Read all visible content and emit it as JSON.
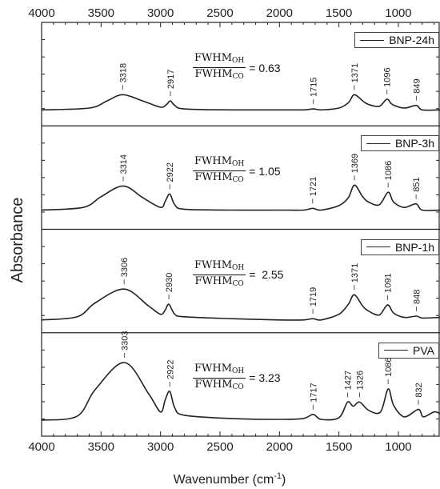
{
  "chart_data": {
    "type": "line",
    "title": "",
    "xlabel": "Wavenumber (cm",
    "xlabel_sup": "-1",
    "xlabel_tail": ")",
    "ylabel": "Absorbance",
    "xlim": [
      4000,
      650
    ],
    "x_reversed": true,
    "x_ticks": [
      4000,
      3500,
      3000,
      2500,
      2000,
      1500,
      1000
    ],
    "x_tick_labels": [
      "4000",
      "3500",
      "3000",
      "2500",
      "2000",
      "1500",
      "1000"
    ],
    "top_x_tick_labels": [
      "4000",
      "3500",
      "3000",
      "2500",
      "2000",
      "1500",
      "1000"
    ],
    "legend_placement": "top-right of each panel",
    "line_color": "#222222",
    "panels": [
      {
        "series_name": "BNP-24h",
        "ratio_numerator": "FWHM",
        "ratio_numerator_sub": "OH",
        "ratio_denominator": "FWHM",
        "ratio_denominator_sub": "CO",
        "ratio_text": "= 0.63",
        "peak_labels": [
          {
            "x": 3318,
            "label": "3318"
          },
          {
            "x": 2917,
            "label": "2917"
          },
          {
            "x": 1715,
            "label": "1715"
          },
          {
            "x": 1371,
            "label": "1371"
          },
          {
            "x": 1096,
            "label": "1096"
          },
          {
            "x": 849,
            "label": "849"
          }
        ],
        "x": [
          4000,
          3600,
          3450,
          3318,
          3150,
          3000,
          2950,
          2917,
          2880,
          2800,
          2400,
          2000,
          1800,
          1715,
          1650,
          1500,
          1420,
          1371,
          1300,
          1250,
          1160,
          1096,
          1050,
          950,
          849,
          800,
          650
        ],
        "values": [
          0.0,
          0.02,
          0.1,
          0.17,
          0.1,
          0.03,
          0.06,
          0.1,
          0.05,
          0.01,
          0.0,
          0.0,
          0.0,
          0.01,
          0.0,
          0.02,
          0.08,
          0.17,
          0.1,
          0.06,
          0.04,
          0.12,
          0.06,
          0.02,
          0.05,
          0.0,
          0.0
        ]
      },
      {
        "series_name": "BNP-3h",
        "ratio_numerator": "FWHM",
        "ratio_numerator_sub": "OH",
        "ratio_denominator": "FWHM",
        "ratio_denominator_sub": "CO",
        "ratio_text": "= 1.05",
        "peak_labels": [
          {
            "x": 3314,
            "label": "3314"
          },
          {
            "x": 2922,
            "label": "2922"
          },
          {
            "x": 1721,
            "label": "1721"
          },
          {
            "x": 1369,
            "label": "1369"
          },
          {
            "x": 1086,
            "label": "1086"
          },
          {
            "x": 851,
            "label": "851"
          }
        ],
        "x": [
          4000,
          3650,
          3500,
          3314,
          3150,
          3000,
          2960,
          2922,
          2880,
          2800,
          2400,
          2000,
          1800,
          1721,
          1650,
          1500,
          1420,
          1369,
          1300,
          1250,
          1160,
          1086,
          1040,
          950,
          851,
          800,
          650
        ],
        "values": [
          0.0,
          0.03,
          0.15,
          0.27,
          0.14,
          0.03,
          0.1,
          0.18,
          0.06,
          0.01,
          0.0,
          0.0,
          0.0,
          0.02,
          0.0,
          0.05,
          0.14,
          0.28,
          0.15,
          0.09,
          0.06,
          0.2,
          0.09,
          0.03,
          0.07,
          0.0,
          0.0
        ]
      },
      {
        "series_name": "BNP-1h",
        "ratio_numerator": "FWHM",
        "ratio_numerator_sub": "OH",
        "ratio_denominator": "FWHM",
        "ratio_denominator_sub": "CO",
        "ratio_text": "=  2.55",
        "peak_labels": [
          {
            "x": 3306,
            "label": "3306"
          },
          {
            "x": 2930,
            "label": "2930"
          },
          {
            "x": 1719,
            "label": "1719"
          },
          {
            "x": 1371,
            "label": "1371"
          },
          {
            "x": 1091,
            "label": "1091"
          },
          {
            "x": 848,
            "label": "848"
          }
        ],
        "x": [
          4000,
          3700,
          3550,
          3306,
          3100,
          3000,
          2960,
          2930,
          2880,
          2800,
          2400,
          2000,
          1800,
          1719,
          1650,
          1500,
          1420,
          1371,
          1300,
          1250,
          1160,
          1091,
          1040,
          950,
          848,
          800,
          650
        ],
        "values": [
          0.0,
          0.05,
          0.27,
          0.49,
          0.22,
          0.09,
          0.16,
          0.25,
          0.09,
          0.05,
          0.02,
          0.0,
          0.0,
          0.02,
          0.0,
          0.09,
          0.25,
          0.4,
          0.22,
          0.14,
          0.08,
          0.24,
          0.11,
          0.04,
          0.06,
          0.03,
          0.04
        ]
      },
      {
        "series_name": "PVA",
        "ratio_numerator": "FWHM",
        "ratio_numerator_sub": "OH",
        "ratio_denominator": "FWHM",
        "ratio_denominator_sub": "CO",
        "ratio_text": "= 3.23",
        "peak_labels": [
          {
            "x": 3303,
            "label": "3303"
          },
          {
            "x": 2922,
            "label": "2922"
          },
          {
            "x": 1717,
            "label": "1717"
          },
          {
            "x": 1427,
            "label": "1427"
          },
          {
            "x": 1326,
            "label": "1326"
          },
          {
            "x": 1086,
            "label": "1086"
          },
          {
            "x": 832,
            "label": "832"
          }
        ],
        "x": [
          4000,
          3700,
          3550,
          3303,
          3100,
          3000,
          2960,
          2922,
          2880,
          2800,
          2400,
          2000,
          1800,
          1717,
          1650,
          1500,
          1427,
          1380,
          1326,
          1250,
          1150,
          1086,
          1040,
          950,
          832,
          790,
          700,
          650
        ],
        "values": [
          0.0,
          0.05,
          0.37,
          0.7,
          0.32,
          0.1,
          0.25,
          0.35,
          0.15,
          0.06,
          0.02,
          0.01,
          0.02,
          0.07,
          0.01,
          0.03,
          0.22,
          0.17,
          0.22,
          0.12,
          0.1,
          0.38,
          0.18,
          0.04,
          0.13,
          0.04,
          0.1,
          0.08
        ]
      }
    ]
  }
}
